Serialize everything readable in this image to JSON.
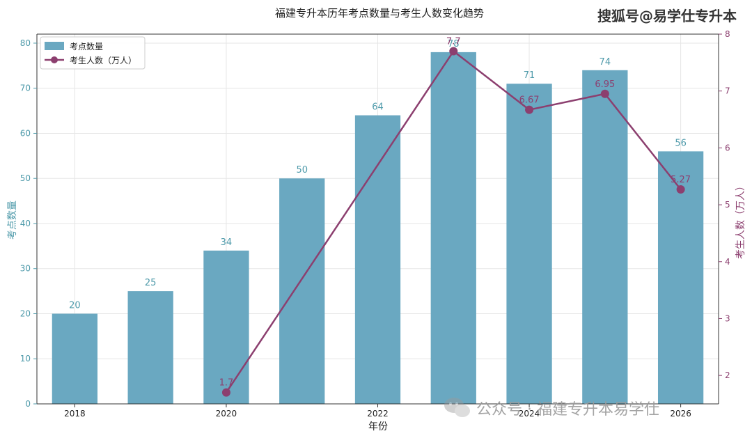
{
  "chart_data": {
    "type": "bar",
    "title": "福建专升本历年考点数量与考生人数变化趋势",
    "xlabel": "年份",
    "ylabel": "考点数量",
    "y2label": "考生人数（万人）",
    "categories": [
      "2018",
      "2019",
      "2020",
      "2021",
      "2022",
      "2023",
      "2024",
      "2025",
      "2026"
    ],
    "xticks": [
      "2018",
      "2020",
      "2022",
      "2024",
      "2026"
    ],
    "ylim": [
      0,
      82
    ],
    "y2lim": [
      1.5,
      8
    ],
    "yticks": [
      "0",
      "10",
      "20",
      "30",
      "40",
      "50",
      "60",
      "70",
      "80"
    ],
    "y2ticks": [
      "2",
      "3",
      "4",
      "5",
      "6",
      "7",
      "8"
    ],
    "grid": true,
    "legend_position": "top-left",
    "series": [
      {
        "name": "考点数量",
        "kind": "bar",
        "values": [
          20,
          25,
          34,
          50,
          64,
          78,
          71,
          74,
          56
        ],
        "labels": [
          "20",
          "25",
          "34",
          "50",
          "64",
          "78",
          "71",
          "74",
          "56"
        ]
      },
      {
        "name": "考生人数（万人）",
        "kind": "line",
        "points": [
          {
            "year": "2020",
            "value": 1.7,
            "label": "1.7"
          },
          {
            "year": "2023",
            "value": 7.7,
            "label": "7.7"
          },
          {
            "year": "2024",
            "value": 6.67,
            "label": "6.67"
          },
          {
            "year": "2025",
            "value": 6.95,
            "label": "6.95"
          },
          {
            "year": "2026",
            "value": 5.27,
            "label": "5.27"
          }
        ]
      }
    ]
  },
  "watermarks": {
    "top_right": "搜狐号@易学仕专升本",
    "bottom": "公众号 · 福建专升本易学仕"
  },
  "colors": {
    "bar": "#6aa8c1",
    "line": "#8c3f6f",
    "left_axis": "#4e9aaa",
    "right_axis": "#8c3f6f",
    "grid": "#e6e6e6"
  }
}
